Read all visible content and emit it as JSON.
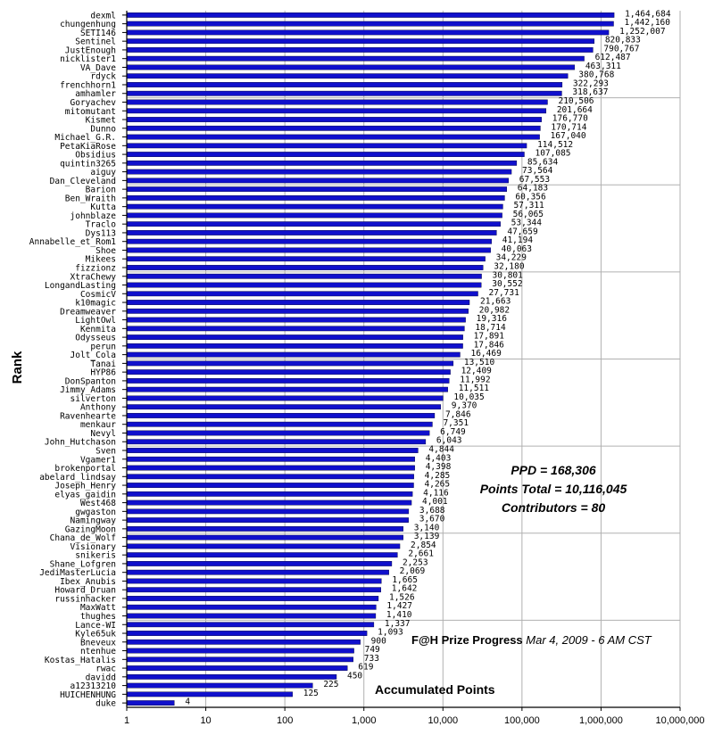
{
  "chart_data": {
    "type": "bar",
    "orientation": "horizontal",
    "log_scale_x": true,
    "xlim": [
      1,
      10000000
    ],
    "ylabel": "Rank",
    "xlabel": "Accumulated Points",
    "grid": true,
    "bar_color": "#1010cc",
    "x_tick_labels": [
      "1",
      "10",
      "100",
      "1,000",
      "10,000",
      "100,000",
      "1,000,000",
      "10,000,000"
    ],
    "categories": [
      "dexml",
      "chungenhung",
      "SETI146",
      "Sentinel",
      "JustEnough",
      "nicklister1",
      "VA_Dave",
      "rdyck",
      "frenchhorn1",
      "amhamler",
      "Goryachev",
      "mitomutant",
      "Kismet",
      "Dunno",
      "Michael_G.R.",
      "PetaKiaRose",
      "Obsidius",
      "quintin3265",
      "aiguy",
      "Dan_Cleveland",
      "Barion",
      "Ben_Wraith",
      "Kutta",
      "johnblaze",
      "Traclo",
      "Dys113",
      "Annabelle_et_Rom1",
      "Shoe",
      "Mikees",
      "fizzionz",
      "XtraChewy",
      "LongandLasting",
      "CosmicV",
      "k10magic",
      "Dreamweaver",
      "LightOwl",
      "Kenmita",
      "Odysseus",
      "perun",
      "Jolt_Cola",
      "Tanai",
      "HYP86",
      "DonSpanton",
      "Jimmy_Adams",
      "silverton",
      "Anthony",
      "Ravenhearte",
      "menkaur",
      "Nevyl",
      "John_Hutchason",
      "Sven",
      "Vgamer1",
      "brokenportal",
      "abelard_lindsay",
      "Joseph_Henry",
      "elyas_gaidin",
      "West468",
      "gwgaston",
      "Namingway",
      "GazingMoon",
      "Chana_de_Wolf",
      "Visionary",
      "snikeris",
      "Shane_Lofgren",
      "JediMasterLucia",
      "Ibex_Anubis",
      "Howard_Druan",
      "russinhacker",
      "MaxWatt",
      "thughes",
      "Lance-WI",
      "Kyle65uk",
      "Bneveux",
      "ntenhue",
      "Kostas_Hatalis",
      "rwac",
      "davidd",
      "a12313210",
      "HUICHENHUNG",
      "duke"
    ],
    "values": [
      1464684,
      1442160,
      1252007,
      820833,
      790767,
      612487,
      463311,
      380768,
      322293,
      318637,
      210506,
      201664,
      176770,
      170714,
      167040,
      114512,
      107085,
      85634,
      73564,
      67553,
      64183,
      60356,
      57311,
      56065,
      53344,
      47659,
      41194,
      40063,
      34229,
      32180,
      30801,
      30552,
      27731,
      21663,
      20982,
      19316,
      18714,
      17891,
      17846,
      16469,
      13510,
      12409,
      11992,
      11511,
      10035,
      9370,
      7846,
      7351,
      6749,
      6043,
      4844,
      4403,
      4398,
      4285,
      4265,
      4116,
      4001,
      3688,
      3670,
      3140,
      3139,
      2854,
      2661,
      2253,
      2069,
      1665,
      1642,
      1526,
      1427,
      1410,
      1337,
      1093,
      900,
      749,
      733,
      619,
      450,
      225,
      125,
      4
    ],
    "value_labels": [
      "1,464,684",
      "1,442,160",
      "1,252,007",
      "820,833",
      "790,767",
      "612,487",
      "463,311",
      "380,768",
      "322,293",
      "318,637",
      "210,506",
      "201,664",
      "176,770",
      "170,714",
      "167,040",
      "114,512",
      "107,085",
      "85,634",
      "73,564",
      "67,553",
      "64,183",
      "60,356",
      "57,311",
      "56,065",
      "53,344",
      "47,659",
      "41,194",
      "40,063",
      "34,229",
      "32,180",
      "30,801",
      "30,552",
      "27,731",
      "21,663",
      "20,982",
      "19,316",
      "18,714",
      "17,891",
      "17,846",
      "16,469",
      "13,510",
      "12,409",
      "11,992",
      "11,511",
      "10,035",
      "9,370",
      "7,846",
      "7,351",
      "6,749",
      "6,043",
      "4,844",
      "4,403",
      "4,398",
      "4,285",
      "4,265",
      "4,116",
      "4,001",
      "3,688",
      "3,670",
      "3,140",
      "3,139",
      "2,854",
      "2,661",
      "2,253",
      "2,069",
      "1,665",
      "1,642",
      "1,526",
      "1,427",
      "1,410",
      "1,337",
      "1,093",
      "900",
      "749",
      "733",
      "619",
      "450",
      "225",
      "125",
      "4"
    ]
  },
  "stats": {
    "ppd": "PPD = 168,306",
    "points_total": "Points Total = 10,116,045",
    "contributors": "Contributors = 80"
  },
  "caption": {
    "title": "F@H Prize Progress",
    "date": "Mar 4, 2009 - 6 AM CST"
  }
}
